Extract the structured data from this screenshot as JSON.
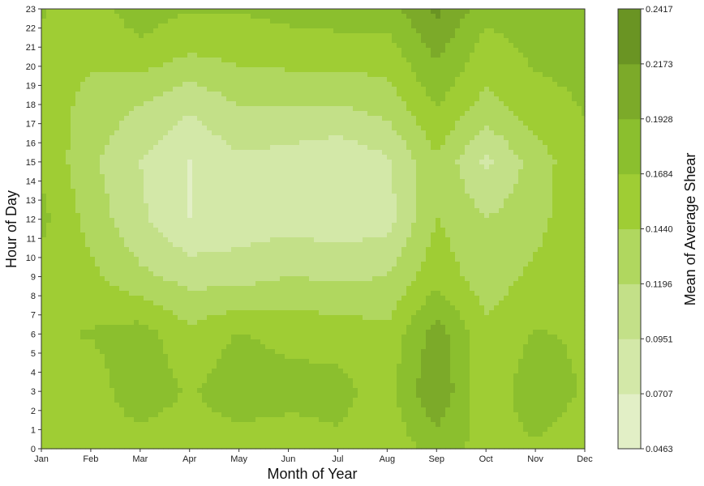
{
  "chart_data": {
    "type": "contour",
    "xlabel": "Month of Year",
    "ylabel": "Hour of Day",
    "colorbar_label": "Mean of Average Shear",
    "x_ticks": [
      "Jan",
      "Feb",
      "Mar",
      "Apr",
      "May",
      "Jun",
      "Jul",
      "Aug",
      "Sep",
      "Oct",
      "Nov",
      "Dec"
    ],
    "y_ticks": [
      "0",
      "1",
      "2",
      "3",
      "4",
      "5",
      "6",
      "7",
      "8",
      "9",
      "10",
      "11",
      "12",
      "13",
      "14",
      "15",
      "16",
      "17",
      "18",
      "19",
      "20",
      "21",
      "22",
      "23"
    ],
    "ylim": [
      0,
      23
    ],
    "levels": [
      "0.0463",
      "0.0707",
      "0.0951",
      "0.1196",
      "0.1440",
      "0.1684",
      "0.1928",
      "0.2173",
      "0.2417"
    ],
    "level_colors": [
      "#e2efc6",
      "#d3e8a8",
      "#c3e088",
      "#b0d75f",
      "#9fcd34",
      "#8bbf2e",
      "#7caa29",
      "#6a9423"
    ],
    "hours_sampled": [
      0,
      3,
      6,
      9,
      12,
      15,
      18,
      21,
      23
    ],
    "values": [
      [
        0.165,
        0.155,
        0.165,
        0.16,
        0.175,
        0.165,
        0.16,
        0.165,
        0.17
      ],
      [
        0.16,
        0.155,
        0.17,
        0.15,
        0.135,
        0.125,
        0.135,
        0.15,
        0.16
      ],
      [
        0.155,
        0.185,
        0.18,
        0.125,
        0.1,
        0.095,
        0.12,
        0.165,
        0.18
      ],
      [
        0.155,
        0.165,
        0.15,
        0.11,
        0.07,
        0.07,
        0.1,
        0.15,
        0.17
      ],
      [
        0.155,
        0.185,
        0.17,
        0.11,
        0.08,
        0.09,
        0.12,
        0.155,
        0.17
      ],
      [
        0.15,
        0.18,
        0.16,
        0.12,
        0.085,
        0.085,
        0.12,
        0.16,
        0.175
      ],
      [
        0.165,
        0.175,
        0.16,
        0.115,
        0.08,
        0.075,
        0.12,
        0.16,
        0.18
      ],
      [
        0.15,
        0.16,
        0.15,
        0.12,
        0.085,
        0.09,
        0.13,
        0.16,
        0.18
      ],
      [
        0.18,
        0.215,
        0.205,
        0.16,
        0.145,
        0.14,
        0.17,
        0.2,
        0.225
      ],
      [
        0.16,
        0.15,
        0.15,
        0.13,
        0.12,
        0.09,
        0.135,
        0.16,
        0.175
      ],
      [
        0.165,
        0.185,
        0.17,
        0.15,
        0.135,
        0.13,
        0.16,
        0.175,
        0.18
      ],
      [
        0.155,
        0.165,
        0.165,
        0.165,
        0.165,
        0.165,
        0.17,
        0.175,
        0.18
      ]
    ]
  }
}
